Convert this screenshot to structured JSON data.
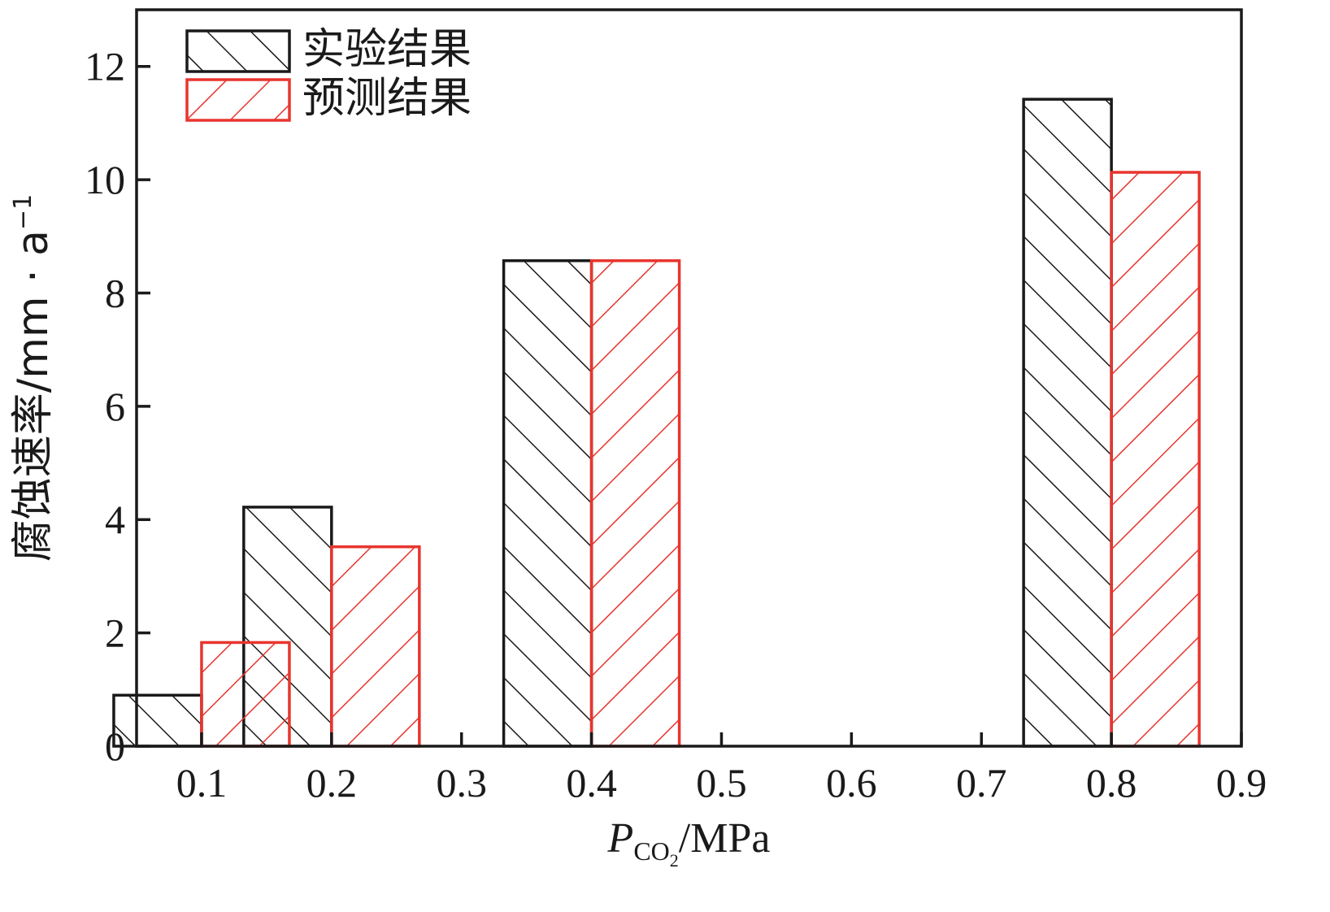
{
  "chart_data": {
    "type": "bar",
    "x_ticks": [
      "0.1",
      "0.2",
      "0.3",
      "0.4",
      "0.5",
      "0.6",
      "0.7",
      "0.8",
      "0.9"
    ],
    "y_ticks": [
      "0",
      "2",
      "4",
      "6",
      "8",
      "10",
      "12"
    ],
    "xlim": [
      0.05,
      0.9
    ],
    "ylim": [
      0,
      13
    ],
    "series": [
      {
        "name": "实验结果",
        "color": "#1a1a1a",
        "hatch": "forward-diagonal",
        "points": [
          {
            "x": 0.1,
            "y": 0.9
          },
          {
            "x": 0.2,
            "y": 4.22
          },
          {
            "x": 0.4,
            "y": 8.57
          },
          {
            "x": 0.8,
            "y": 11.42
          }
        ]
      },
      {
        "name": "预测结果",
        "color": "#e8352e",
        "hatch": "back-diagonal",
        "points": [
          {
            "x": 0.1,
            "y": 1.83
          },
          {
            "x": 0.2,
            "y": 3.52
          },
          {
            "x": 0.4,
            "y": 8.57
          },
          {
            "x": 0.8,
            "y": 10.13
          }
        ]
      }
    ],
    "x_axis_title": {
      "main": "P",
      "subscript": "CO",
      "sub_subscript": "2",
      "unit": "/MPa"
    },
    "y_axis_title": {
      "main": "腐蚀速率/mm · a",
      "superscript": "−1"
    },
    "legend_position": "top-left",
    "grid": false
  }
}
